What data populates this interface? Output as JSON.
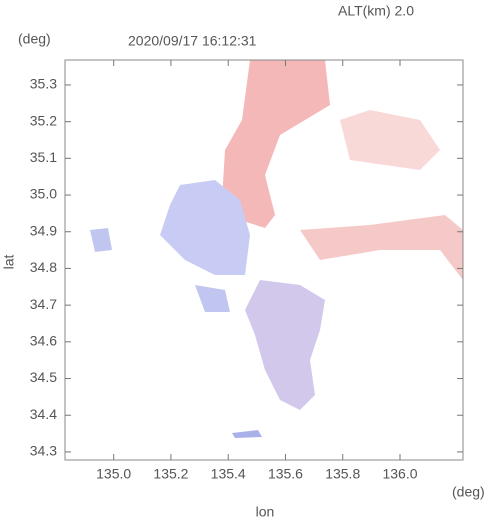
{
  "chart_data": {
    "type": "map",
    "title": "2020/09/17 16:12:31",
    "annotation": "ALT(km) 2.0",
    "x_label": "lon",
    "x_unit": "(deg)",
    "y_label": "lat",
    "y_unit": "(deg)",
    "xlim": [
      134.83,
      136.22
    ],
    "ylim": [
      34.278,
      35.368
    ],
    "xticks": [
      {
        "value": 135.0,
        "label": "135.0"
      },
      135.2,
      135.4,
      135.6,
      135.8,
      {
        "value": 136.0,
        "label": "136.0"
      }
    ],
    "yticks": [
      35.3,
      35.2,
      35.1,
      {
        "value": 35.0,
        "label": "35.0"
      },
      34.9,
      34.8,
      34.7,
      34.6,
      34.5,
      34.4,
      34.3
    ]
  }
}
